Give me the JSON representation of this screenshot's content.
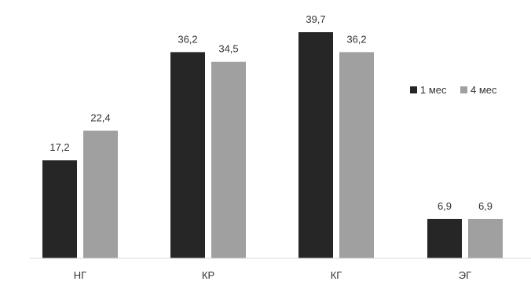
{
  "chart_data": {
    "type": "bar",
    "categories": [
      "НГ",
      "КР",
      "КГ",
      "ЭГ"
    ],
    "series": [
      {
        "name": "1 мес",
        "color": "#262626",
        "values": [
          17.2,
          36.2,
          39.7,
          6.9
        ],
        "labels": [
          "17,2",
          "36,2",
          "39,7",
          "6,9"
        ]
      },
      {
        "name": "4 мес",
        "color": "#a0a0a0",
        "values": [
          22.4,
          34.5,
          36.2,
          6.9
        ],
        "labels": [
          "22,4",
          "34,5",
          "36,2",
          "6,9"
        ]
      }
    ],
    "ylim": [
      0,
      40
    ],
    "grid": false,
    "legend": "right",
    "title": "",
    "xlabel": "",
    "ylabel": ""
  }
}
